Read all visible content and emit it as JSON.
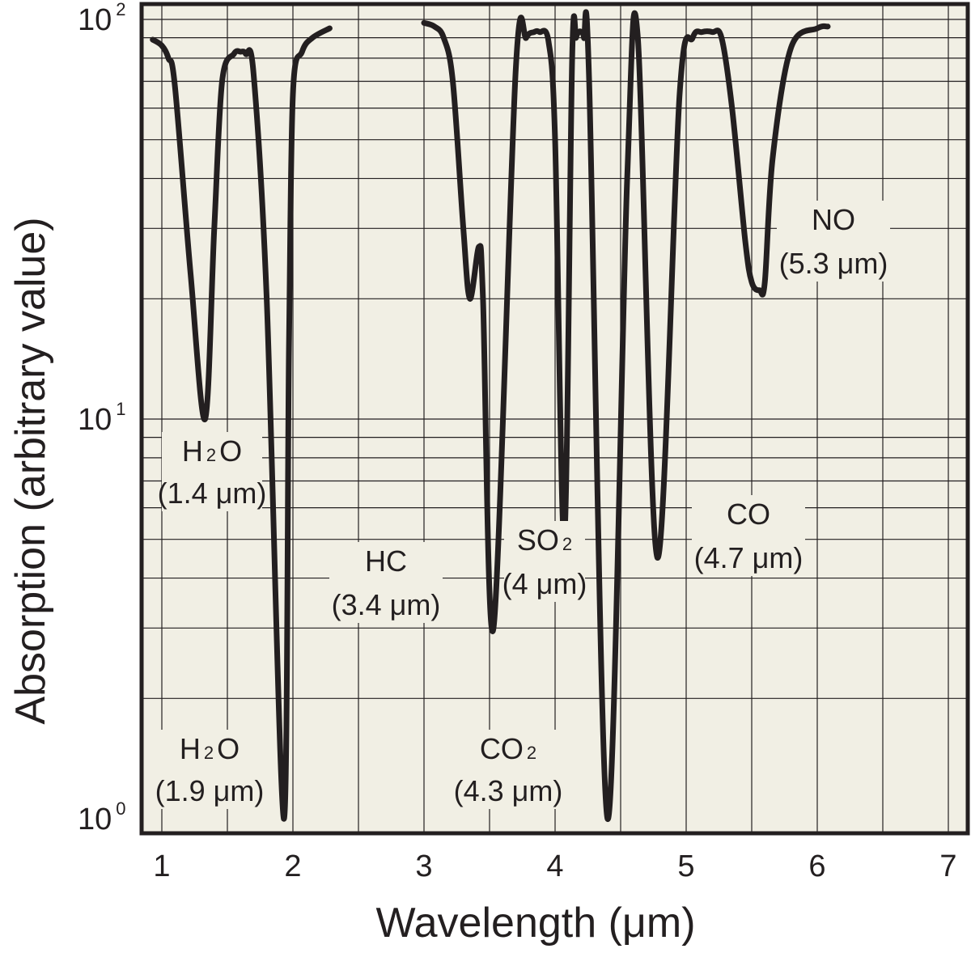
{
  "chart_data": {
    "type": "line",
    "title": "",
    "xlabel": "Wavelength (μm)",
    "ylabel": "Absorption (arbitrary value)",
    "xlim": [
      0.85,
      7.2
    ],
    "ylim": [
      1,
      100
    ],
    "yscale": "log",
    "grid": true,
    "background_color": "#f1efe4",
    "line_color": "#231f20",
    "x_ticks": [
      {
        "value": 1,
        "label": "1"
      },
      {
        "value": 2,
        "label": "2"
      },
      {
        "value": 3,
        "label": "3"
      },
      {
        "value": 4,
        "label": "4"
      },
      {
        "value": 5,
        "label": "5"
      },
      {
        "value": 6,
        "label": "6"
      },
      {
        "value": 7,
        "label": "7"
      }
    ],
    "y_ticks": [
      {
        "value": 1,
        "base": "10",
        "exp": "0"
      },
      {
        "value": 10,
        "base": "10",
        "exp": "1"
      },
      {
        "value": 100,
        "base": "10",
        "exp": "2"
      }
    ],
    "series": [
      {
        "x": [
          0.93,
          1.0,
          1.05,
          1.1,
          1.22,
          1.33,
          1.4,
          1.46,
          1.55,
          1.6,
          1.64,
          1.7,
          1.8,
          1.93,
          1.97,
          2.0,
          2.07,
          2.15,
          2.28
        ],
        "y": [
          89,
          86,
          80,
          68,
          23,
          10,
          30,
          70,
          82,
          83,
          82,
          73,
          20,
          1,
          15,
          65,
          83,
          90,
          95
        ]
      },
      {
        "x": [
          3.0,
          3.08,
          3.15,
          3.22,
          3.3,
          3.35,
          3.42,
          3.45,
          3.53,
          3.7,
          3.78,
          3.84,
          3.88,
          3.95,
          4.0,
          4.07,
          4.13,
          4.16,
          4.18,
          4.2,
          4.22,
          4.26,
          4.4,
          4.55,
          4.63,
          4.78,
          4.95,
          5.05,
          5.12,
          5.2,
          5.27,
          5.35,
          5.45,
          5.5,
          5.56,
          5.6,
          5.66,
          5.8,
          6.0,
          6.08
        ],
        "y": [
          98,
          96,
          90,
          70,
          30,
          20,
          27,
          20,
          3,
          75,
          90,
          93,
          93,
          88,
          50,
          5,
          80,
          90,
          93,
          93,
          90,
          70,
          1,
          40,
          91,
          4.5,
          65,
          90,
          93,
          93,
          90,
          60,
          28,
          22,
          21,
          22,
          45,
          85,
          95,
          96
        ]
      }
    ],
    "annotations": [
      {
        "label": "H",
        "sub": "2",
        "tail": "O",
        "wavelength": "(1.4 μm)"
      },
      {
        "label": "H",
        "sub": "2",
        "tail": "O",
        "wavelength": "(1.9 μm)"
      },
      {
        "label": "HC",
        "sub": "",
        "tail": "",
        "wavelength": "(3.4 μm)"
      },
      {
        "label": "SO",
        "sub": "2",
        "tail": "",
        "wavelength": "(4 μm)"
      },
      {
        "label": "CO",
        "sub": "2",
        "tail": "",
        "wavelength": "(4.3 μm)"
      },
      {
        "label": "CO",
        "sub": "",
        "tail": "",
        "wavelength": "(4.7 μm)"
      },
      {
        "label": "NO",
        "sub": "",
        "tail": "",
        "wavelength": "(5.3 μm)"
      }
    ]
  }
}
